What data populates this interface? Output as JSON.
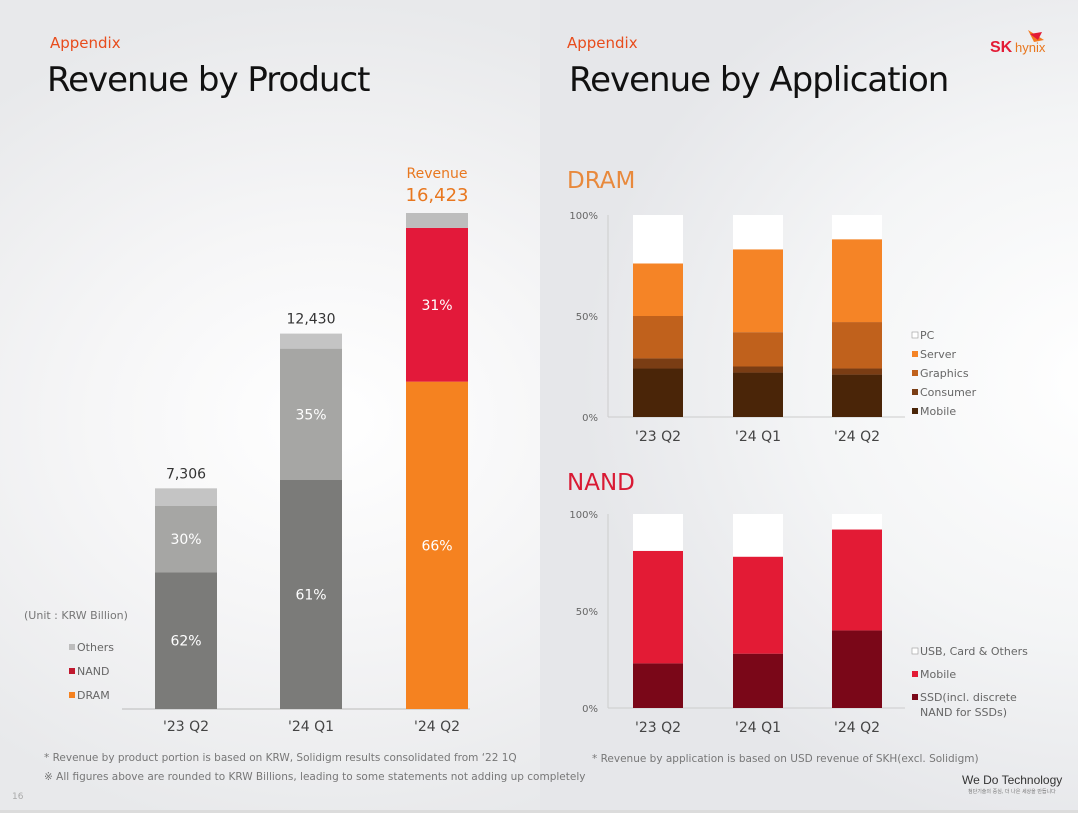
{
  "left": {
    "appendix": "Appendix",
    "title": "Revenue by Product",
    "unit": "(Unit : KRW Billion)",
    "notes": [
      "* Revenue by product portion is based on KRW, Solidigm results consolidated from ‘22 1Q",
      "※ All figures above are rounded to KRW Billions, leading to some statements not adding up completely"
    ],
    "page_number": "16"
  },
  "right": {
    "appendix": "Appendix",
    "title": "Revenue by Application",
    "note": "* Revenue by application is based on USD revenue of SKH(excl. Solidigm)",
    "slogan": "We Do Technology",
    "slogan_sub": "첨단기술의 중심, 더 나은 세상을 만듭니다",
    "brand": "SK hynix"
  },
  "chart_data": [
    {
      "type": "bar",
      "stacked": true,
      "categories": [
        "'23 Q2",
        "'24 Q1",
        "'24 Q2"
      ],
      "unit": "(Unit : KRW Billion)",
      "totals": [
        7306,
        12430,
        16423
      ],
      "total_labels": [
        "7,306",
        "12,430",
        "16,423"
      ],
      "highlight_label": "Revenue",
      "series": [
        {
          "name": "DRAM",
          "percent": [
            62,
            61,
            66
          ],
          "labels": [
            "62%",
            "61%",
            "66%"
          ],
          "color": "#f58220",
          "muted_color": "#7b7b79"
        },
        {
          "name": "NAND",
          "percent": [
            30,
            35,
            31
          ],
          "labels": [
            "30%",
            "35%",
            "31%"
          ],
          "color": "#e3193a",
          "muted_color": "#a6a6a4"
        },
        {
          "name": "Others",
          "percent": [
            8,
            4,
            3
          ],
          "color": "#bdbdbd",
          "muted_color": "#c4c4c4"
        }
      ],
      "legend_order": [
        "Others",
        "NAND",
        "DRAM"
      ],
      "legend": "left"
    },
    {
      "type": "bar",
      "stacked": true,
      "title": "DRAM",
      "title_color": "#e8893c",
      "categories": [
        "'23 Q2",
        "'24 Q1",
        "'24 Q2"
      ],
      "yticks": [
        "0%",
        "50%",
        "100%"
      ],
      "ylim": [
        0,
        100
      ],
      "series": [
        {
          "name": "Mobile",
          "values": [
            24,
            22,
            21
          ],
          "color": "#4a2508"
        },
        {
          "name": "Consumer",
          "values": [
            5,
            3,
            3
          ],
          "color": "#7a3d14"
        },
        {
          "name": "Graphics",
          "values": [
            21,
            17,
            23
          ],
          "color": "#c0611c"
        },
        {
          "name": "Server",
          "values": [
            26,
            41,
            41
          ],
          "color": "#f58426"
        },
        {
          "name": "PC",
          "values": [
            24,
            17,
            12
          ],
          "color": "#ffffff"
        }
      ],
      "legend": "right"
    },
    {
      "type": "bar",
      "stacked": true,
      "title": "NAND",
      "title_color": "#d91a34",
      "categories": [
        "'23 Q2",
        "'24 Q1",
        "'24 Q2"
      ],
      "yticks": [
        "0%",
        "50%",
        "100%"
      ],
      "ylim": [
        0,
        100
      ],
      "series": [
        {
          "name": "SSD(incl. discrete NAND for SSDs)",
          "lines": [
            "SSD(incl. discrete",
            "NAND for SSDs)"
          ],
          "values": [
            23,
            28,
            40
          ],
          "color": "#7a0718"
        },
        {
          "name": "Mobile",
          "values": [
            58,
            50,
            52
          ],
          "color": "#e31b35"
        },
        {
          "name": "USB, Card & Others",
          "values": [
            19,
            22,
            8
          ],
          "color": "#ffffff"
        }
      ],
      "legend": "right"
    }
  ]
}
